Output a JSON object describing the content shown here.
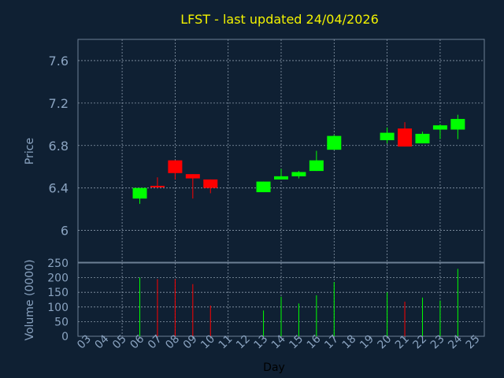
{
  "chart_data": [
    {
      "type": "candlestick",
      "title": "LFST - last updated 24/04/2026",
      "ylabel": "Price",
      "ylim": [
        5.7,
        7.8
      ],
      "yticks": [
        "6",
        "6.4",
        "6.8",
        "7.2",
        "7.6"
      ],
      "ytick_values": [
        6.0,
        6.4,
        6.8,
        7.2,
        7.6
      ],
      "grid": true,
      "colors": {
        "up": "#00ff00",
        "down": "#ff0000"
      },
      "candles": [
        {
          "day": 6,
          "open": 6.3,
          "high": 6.4,
          "low": 6.25,
          "close": 6.4
        },
        {
          "day": 7,
          "open": 6.42,
          "high": 6.5,
          "low": 6.4,
          "close": 6.41
        },
        {
          "day": 8,
          "open": 6.66,
          "high": 6.66,
          "low": 6.48,
          "close": 6.54
        },
        {
          "day": 9,
          "open": 6.53,
          "high": 6.53,
          "low": 6.3,
          "close": 6.49
        },
        {
          "day": 10,
          "open": 6.48,
          "high": 6.48,
          "low": 6.35,
          "close": 6.4
        },
        {
          "day": 13,
          "open": 6.36,
          "high": 6.46,
          "low": 6.36,
          "close": 6.46
        },
        {
          "day": 14,
          "open": 6.48,
          "high": 6.58,
          "low": 6.48,
          "close": 6.51
        },
        {
          "day": 15,
          "open": 6.51,
          "high": 6.56,
          "low": 6.49,
          "close": 6.55
        },
        {
          "day": 16,
          "open": 6.56,
          "high": 6.75,
          "low": 6.56,
          "close": 6.66
        },
        {
          "day": 17,
          "open": 6.76,
          "high": 6.9,
          "low": 6.76,
          "close": 6.89
        },
        {
          "day": 20,
          "open": 6.85,
          "high": 6.97,
          "low": 6.82,
          "close": 6.92
        },
        {
          "day": 21,
          "open": 6.96,
          "high": 7.02,
          "low": 6.79,
          "close": 6.79
        },
        {
          "day": 22,
          "open": 6.82,
          "high": 6.93,
          "low": 6.82,
          "close": 6.91
        },
        {
          "day": 23,
          "open": 6.95,
          "high": 7.0,
          "low": 6.86,
          "close": 6.99
        },
        {
          "day": 24,
          "open": 6.95,
          "high": 7.09,
          "low": 6.86,
          "close": 7.05
        }
      ]
    },
    {
      "type": "bar",
      "ylabel": "Volume (0000)",
      "xlabel": "Day",
      "ylim": [
        0,
        250
      ],
      "yticks": [
        "0",
        "50",
        "100",
        "150",
        "200",
        "250"
      ],
      "ytick_values": [
        0,
        50,
        100,
        150,
        200,
        250
      ],
      "grid": true,
      "categories": [
        "03",
        "04",
        "05",
        "06",
        "07",
        "08",
        "09",
        "10",
        "11",
        "12",
        "13",
        "14",
        "15",
        "16",
        "17",
        "18",
        "19",
        "20",
        "21",
        "22",
        "23",
        "24",
        "25"
      ],
      "x": [
        6,
        7,
        8,
        9,
        10,
        13,
        14,
        15,
        16,
        17,
        20,
        21,
        22,
        23,
        24
      ],
      "values": [
        200,
        195,
        195,
        178,
        105,
        88,
        135,
        112,
        140,
        185,
        150,
        118,
        132,
        122,
        230
      ],
      "bar_colors": [
        "up",
        "down",
        "down",
        "down",
        "down",
        "up",
        "up",
        "up",
        "up",
        "up",
        "up",
        "down",
        "up",
        "up",
        "up"
      ]
    }
  ]
}
